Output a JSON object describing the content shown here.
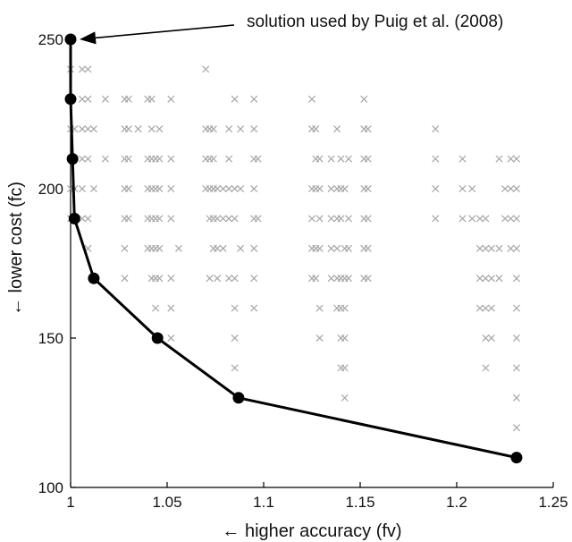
{
  "chart_data": {
    "type": "scatter",
    "xlabel": "← higher accuracy (fv)",
    "ylabel": "← lower cost (fc)",
    "xlim": [
      1,
      1.25
    ],
    "ylim": [
      100,
      250
    ],
    "xticks": [
      "1",
      "1.05",
      "1.1",
      "1.15",
      "1.2",
      "1.25"
    ],
    "yticks": [
      "100",
      "150",
      "200",
      "250"
    ],
    "grid": false,
    "annotation": {
      "text": "solution used by Puig et al. (2008)",
      "points_to": [
        1.0,
        250
      ]
    },
    "series": [
      {
        "marker": "x",
        "color": "#a6a6a6",
        "points": [
          [
            1.0,
            240
          ],
          [
            1.0,
            230
          ],
          [
            1.0,
            220
          ],
          [
            1.0,
            210
          ],
          [
            1.0,
            200
          ],
          [
            1.0,
            190
          ],
          [
            1.002,
            220
          ],
          [
            1.002,
            200
          ],
          [
            1.006,
            240
          ],
          [
            1.006,
            230
          ],
          [
            1.006,
            220
          ],
          [
            1.006,
            210
          ],
          [
            1.006,
            200
          ],
          [
            1.006,
            190
          ],
          [
            1.009,
            240
          ],
          [
            1.009,
            230
          ],
          [
            1.009,
            220
          ],
          [
            1.009,
            210
          ],
          [
            1.009,
            190
          ],
          [
            1.009,
            180
          ],
          [
            1.012,
            220
          ],
          [
            1.012,
            200
          ],
          [
            1.018,
            230
          ],
          [
            1.018,
            210
          ],
          [
            1.028,
            230
          ],
          [
            1.028,
            220
          ],
          [
            1.028,
            210
          ],
          [
            1.028,
            200
          ],
          [
            1.028,
            190
          ],
          [
            1.028,
            180
          ],
          [
            1.028,
            170
          ],
          [
            1.03,
            230
          ],
          [
            1.03,
            220
          ],
          [
            1.03,
            210
          ],
          [
            1.03,
            200
          ],
          [
            1.03,
            190
          ],
          [
            1.035,
            220
          ],
          [
            1.04,
            230
          ],
          [
            1.04,
            210
          ],
          [
            1.04,
            200
          ],
          [
            1.04,
            190
          ],
          [
            1.04,
            180
          ],
          [
            1.042,
            230
          ],
          [
            1.042,
            220
          ],
          [
            1.042,
            210
          ],
          [
            1.042,
            200
          ],
          [
            1.042,
            190
          ],
          [
            1.042,
            180
          ],
          [
            1.042,
            170
          ],
          [
            1.044,
            210
          ],
          [
            1.044,
            200
          ],
          [
            1.044,
            190
          ],
          [
            1.044,
            180
          ],
          [
            1.044,
            170
          ],
          [
            1.044,
            160
          ],
          [
            1.046,
            220
          ],
          [
            1.046,
            210
          ],
          [
            1.046,
            200
          ],
          [
            1.046,
            190
          ],
          [
            1.046,
            180
          ],
          [
            1.046,
            170
          ],
          [
            1.046,
            150
          ],
          [
            1.052,
            230
          ],
          [
            1.052,
            210
          ],
          [
            1.052,
            200
          ],
          [
            1.052,
            190
          ],
          [
            1.052,
            170
          ],
          [
            1.052,
            160
          ],
          [
            1.052,
            150
          ],
          [
            1.056,
            180
          ],
          [
            1.07,
            240
          ],
          [
            1.07,
            220
          ],
          [
            1.07,
            210
          ],
          [
            1.07,
            200
          ],
          [
            1.072,
            220
          ],
          [
            1.072,
            210
          ],
          [
            1.072,
            200
          ],
          [
            1.072,
            190
          ],
          [
            1.072,
            170
          ],
          [
            1.074,
            220
          ],
          [
            1.074,
            210
          ],
          [
            1.074,
            200
          ],
          [
            1.074,
            190
          ],
          [
            1.074,
            180
          ],
          [
            1.076,
            200
          ],
          [
            1.076,
            190
          ],
          [
            1.076,
            180
          ],
          [
            1.076,
            170
          ],
          [
            1.079,
            200
          ],
          [
            1.079,
            190
          ],
          [
            1.079,
            180
          ],
          [
            1.082,
            220
          ],
          [
            1.082,
            210
          ],
          [
            1.082,
            200
          ],
          [
            1.082,
            190
          ],
          [
            1.082,
            170
          ],
          [
            1.085,
            230
          ],
          [
            1.085,
            200
          ],
          [
            1.085,
            190
          ],
          [
            1.085,
            170
          ],
          [
            1.085,
            160
          ],
          [
            1.085,
            150
          ],
          [
            1.085,
            140
          ],
          [
            1.088,
            220
          ],
          [
            1.088,
            200
          ],
          [
            1.088,
            180
          ],
          [
            1.095,
            230
          ],
          [
            1.095,
            220
          ],
          [
            1.095,
            210
          ],
          [
            1.095,
            200
          ],
          [
            1.095,
            190
          ],
          [
            1.095,
            180
          ],
          [
            1.095,
            170
          ],
          [
            1.095,
            160
          ],
          [
            1.097,
            210
          ],
          [
            1.097,
            190
          ],
          [
            1.125,
            230
          ],
          [
            1.125,
            220
          ],
          [
            1.125,
            200
          ],
          [
            1.125,
            190
          ],
          [
            1.125,
            180
          ],
          [
            1.125,
            170
          ],
          [
            1.127,
            220
          ],
          [
            1.127,
            210
          ],
          [
            1.127,
            200
          ],
          [
            1.127,
            180
          ],
          [
            1.127,
            170
          ],
          [
            1.129,
            210
          ],
          [
            1.129,
            200
          ],
          [
            1.129,
            190
          ],
          [
            1.129,
            180
          ],
          [
            1.129,
            160
          ],
          [
            1.129,
            150
          ],
          [
            1.135,
            210
          ],
          [
            1.135,
            200
          ],
          [
            1.135,
            190
          ],
          [
            1.135,
            180
          ],
          [
            1.135,
            170
          ],
          [
            1.138,
            220
          ],
          [
            1.138,
            200
          ],
          [
            1.138,
            190
          ],
          [
            1.138,
            180
          ],
          [
            1.138,
            170
          ],
          [
            1.138,
            160
          ],
          [
            1.14,
            210
          ],
          [
            1.14,
            200
          ],
          [
            1.14,
            190
          ],
          [
            1.14,
            170
          ],
          [
            1.14,
            160
          ],
          [
            1.14,
            150
          ],
          [
            1.14,
            140
          ],
          [
            1.142,
            200
          ],
          [
            1.142,
            180
          ],
          [
            1.142,
            170
          ],
          [
            1.142,
            160
          ],
          [
            1.142,
            150
          ],
          [
            1.142,
            140
          ],
          [
            1.142,
            130
          ],
          [
            1.144,
            210
          ],
          [
            1.144,
            190
          ],
          [
            1.144,
            180
          ],
          [
            1.144,
            170
          ],
          [
            1.152,
            230
          ],
          [
            1.152,
            220
          ],
          [
            1.152,
            210
          ],
          [
            1.152,
            200
          ],
          [
            1.152,
            190
          ],
          [
            1.152,
            180
          ],
          [
            1.152,
            170
          ],
          [
            1.154,
            220
          ],
          [
            1.154,
            210
          ],
          [
            1.154,
            200
          ],
          [
            1.154,
            190
          ],
          [
            1.154,
            180
          ],
          [
            1.154,
            170
          ],
          [
            1.189,
            220
          ],
          [
            1.189,
            210
          ],
          [
            1.189,
            200
          ],
          [
            1.189,
            190
          ],
          [
            1.203,
            210
          ],
          [
            1.203,
            200
          ],
          [
            1.203,
            190
          ],
          [
            1.208,
            200
          ],
          [
            1.208,
            190
          ],
          [
            1.212,
            190
          ],
          [
            1.212,
            180
          ],
          [
            1.212,
            170
          ],
          [
            1.212,
            160
          ],
          [
            1.215,
            190
          ],
          [
            1.215,
            180
          ],
          [
            1.215,
            170
          ],
          [
            1.215,
            160
          ],
          [
            1.215,
            150
          ],
          [
            1.215,
            140
          ],
          [
            1.218,
            180
          ],
          [
            1.218,
            170
          ],
          [
            1.218,
            160
          ],
          [
            1.218,
            150
          ],
          [
            1.222,
            210
          ],
          [
            1.222,
            180
          ],
          [
            1.222,
            170
          ],
          [
            1.225,
            200
          ],
          [
            1.225,
            190
          ],
          [
            1.228,
            210
          ],
          [
            1.228,
            200
          ],
          [
            1.228,
            190
          ],
          [
            1.228,
            180
          ],
          [
            1.231,
            210
          ],
          [
            1.231,
            200
          ],
          [
            1.231,
            190
          ],
          [
            1.231,
            180
          ],
          [
            1.231,
            170
          ],
          [
            1.231,
            160
          ],
          [
            1.231,
            150
          ],
          [
            1.231,
            140
          ],
          [
            1.231,
            130
          ],
          [
            1.231,
            120
          ]
        ]
      },
      {
        "marker": "filled-circle",
        "line": true,
        "color": "#000000",
        "points": [
          [
            1.0,
            250
          ],
          [
            1.0,
            230
          ],
          [
            1.001,
            210
          ],
          [
            1.002,
            190
          ],
          [
            1.012,
            170
          ],
          [
            1.045,
            150
          ],
          [
            1.087,
            130
          ],
          [
            1.231,
            110
          ]
        ]
      }
    ]
  }
}
